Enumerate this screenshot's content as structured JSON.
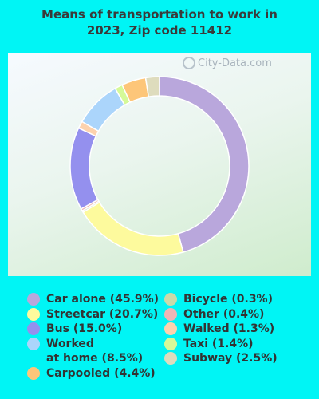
{
  "title_line1": "Means of transportation to work in",
  "title_line2": "2023, Zip code 11412",
  "watermark": "City-Data.com",
  "chart_data": {
    "type": "pie",
    "donut": true,
    "title": "Means of transportation to work in 2023, Zip code 11412",
    "series": [
      {
        "name": "Car alone",
        "value": 45.9,
        "color": "#b9a7dc",
        "label": "Car alone (45.9%)"
      },
      {
        "name": "Streetcar",
        "value": 20.7,
        "color": "#fdfa9d",
        "label": "Streetcar (20.7%)"
      },
      {
        "name": "Bicycle",
        "value": 0.3,
        "color": "#c9d9a9",
        "label": "Bicycle (0.3%)"
      },
      {
        "name": "Other",
        "value": 0.4,
        "color": "#efb5b5",
        "label": "Other (0.4%)"
      },
      {
        "name": "Bus",
        "value": 15.0,
        "color": "#9490ee",
        "label": "Bus (15.0%)"
      },
      {
        "name": "Walked",
        "value": 1.3,
        "color": "#fdd2ad",
        "label": "Walked (1.3%)"
      },
      {
        "name": "Worked at home",
        "value": 8.5,
        "color": "#abd5fb",
        "label": "Worked\nat home (8.5%)"
      },
      {
        "name": "Taxi",
        "value": 1.4,
        "color": "#d5f998",
        "label": "Taxi (1.4%)"
      },
      {
        "name": "Carpooled",
        "value": 4.4,
        "color": "#fdc679",
        "label": "Carpooled (4.4%)"
      },
      {
        "name": "Subway",
        "value": 2.5,
        "color": "#dedcbd",
        "label": "Subway (2.5%)"
      }
    ],
    "legend_placement": "bottom"
  },
  "legend_columns": [
    [
      "Car alone",
      "Streetcar",
      "Bus",
      "Worked at home",
      "Carpooled"
    ],
    [
      "Bicycle",
      "Other",
      "Walked",
      "Taxi",
      "Subway"
    ]
  ]
}
